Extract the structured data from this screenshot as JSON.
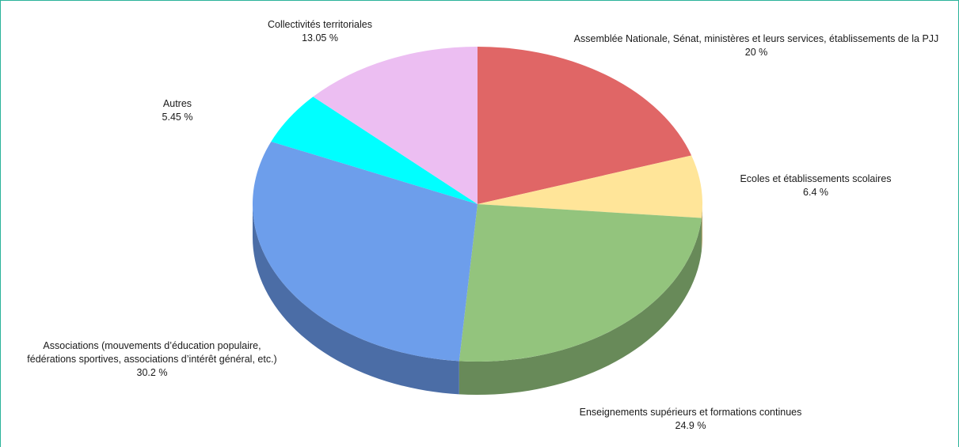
{
  "chart_data": {
    "type": "pie",
    "title": "",
    "slices": [
      {
        "label_lines": [
          "Assemblée Nationale, Sénat, ministères et leurs services,  établissements de la PJJ"
        ],
        "value": 20,
        "value_text": "20 %",
        "color": "#e06666",
        "side_color": "#a34a4a"
      },
      {
        "label_lines": [
          "Ecoles et établissements scolaires"
        ],
        "value": 6.4,
        "value_text": "6.4 %",
        "color": "#ffe599",
        "side_color": "#b8a56e"
      },
      {
        "label_lines": [
          "Enseignements supérieurs et formations continues"
        ],
        "value": 24.9,
        "value_text": "24.9 %",
        "color": "#93c47d",
        "side_color": "#688a59"
      },
      {
        "label_lines": [
          "Associations (mouvements d’éducation populaire,",
          "fédérations sportives, associations d’intérêt général, etc.)"
        ],
        "value": 30.2,
        "value_text": "30.2 %",
        "color": "#6d9eeb",
        "side_color": "#4b6da6"
      },
      {
        "label_lines": [
          "Autres"
        ],
        "value": 5.45,
        "value_text": "5.45 %",
        "color": "#00ffff",
        "side_color": "#00b3b3"
      },
      {
        "label_lines": [
          "Collectivités territoriales"
        ],
        "value": 13.05,
        "value_text": "13.05 %",
        "color": "#ecbef2",
        "side_color": "#a585aa"
      }
    ],
    "start_angle": "top",
    "direction": "clockwise",
    "style": "3d-tilted",
    "legend": "none"
  }
}
